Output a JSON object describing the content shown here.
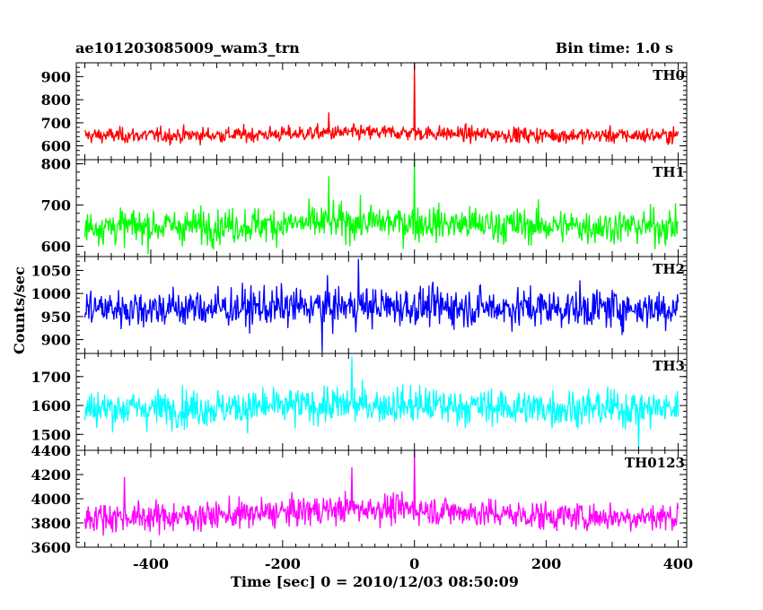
{
  "header": {
    "title": "ae101203085009_wam3_trn",
    "bin_time": "Bin time: 1.0 s"
  },
  "axes": {
    "xlabel": "Time [sec] 0 = 2010/12/03 08:50:09",
    "ylabel": "Counts/sec"
  },
  "chart_data": [
    {
      "type": "line",
      "name": "TH0",
      "color": "#ff0000",
      "xlim": [
        -513,
        413
      ],
      "ylim": [
        540,
        960
      ],
      "yticks": [
        600,
        700,
        800,
        900
      ],
      "baseline": 645,
      "noise": 24,
      "trend_amp": 12,
      "spikes": [
        {
          "x": 0,
          "y": 960
        },
        {
          "x": -130,
          "y": 745
        }
      ],
      "x_range": [
        -500,
        400
      ]
    },
    {
      "type": "line",
      "name": "TH1",
      "color": "#00ff00",
      "xlim": [
        -513,
        413
      ],
      "ylim": [
        575,
        810
      ],
      "yticks": [
        600,
        700,
        800
      ],
      "baseline": 648,
      "noise": 30,
      "trend_amp": 10,
      "spikes": [
        {
          "x": 0,
          "y": 810
        },
        {
          "x": -130,
          "y": 770
        }
      ],
      "x_range": [
        -500,
        400
      ]
    },
    {
      "type": "line",
      "name": "TH2",
      "color": "#0000ff",
      "xlim": [
        -513,
        413
      ],
      "ylim": [
        870,
        1080
      ],
      "yticks": [
        900,
        950,
        1000,
        1050
      ],
      "baseline": 968,
      "noise": 30,
      "trend_amp": 4,
      "spikes": [
        {
          "x": -85,
          "y": 1075
        },
        {
          "x": -140,
          "y": 875
        }
      ],
      "x_range": [
        -500,
        400
      ]
    },
    {
      "type": "line",
      "name": "TH3",
      "color": "#00ffff",
      "xlim": [
        -513,
        413
      ],
      "ylim": [
        1445,
        1780
      ],
      "yticks": [
        1500,
        1600,
        1700
      ],
      "baseline": 1590,
      "noise": 45,
      "trend_amp": 12,
      "spikes": [
        {
          "x": -95,
          "y": 1770
        },
        {
          "x": 340,
          "y": 1450
        }
      ],
      "x_range": [
        -500,
        400
      ]
    },
    {
      "type": "line",
      "name": "TH0123",
      "color": "#ff00ff",
      "xlim": [
        -513,
        413
      ],
      "ylim": [
        3600,
        4400
      ],
      "yticks": [
        3600,
        3800,
        4000,
        4200,
        4400
      ],
      "baseline": 3850,
      "noise": 85,
      "trend_amp": 70,
      "spikes": [
        {
          "x": 0,
          "y": 4400
        },
        {
          "x": -95,
          "y": 4260
        },
        {
          "x": -440,
          "y": 4180
        }
      ],
      "x_range": [
        -500,
        400
      ]
    }
  ],
  "xaxis": {
    "ticks": [
      -400,
      -200,
      0,
      200,
      400
    ],
    "tick_labels": [
      "-400",
      "-200",
      "0",
      "200",
      "400"
    ]
  }
}
